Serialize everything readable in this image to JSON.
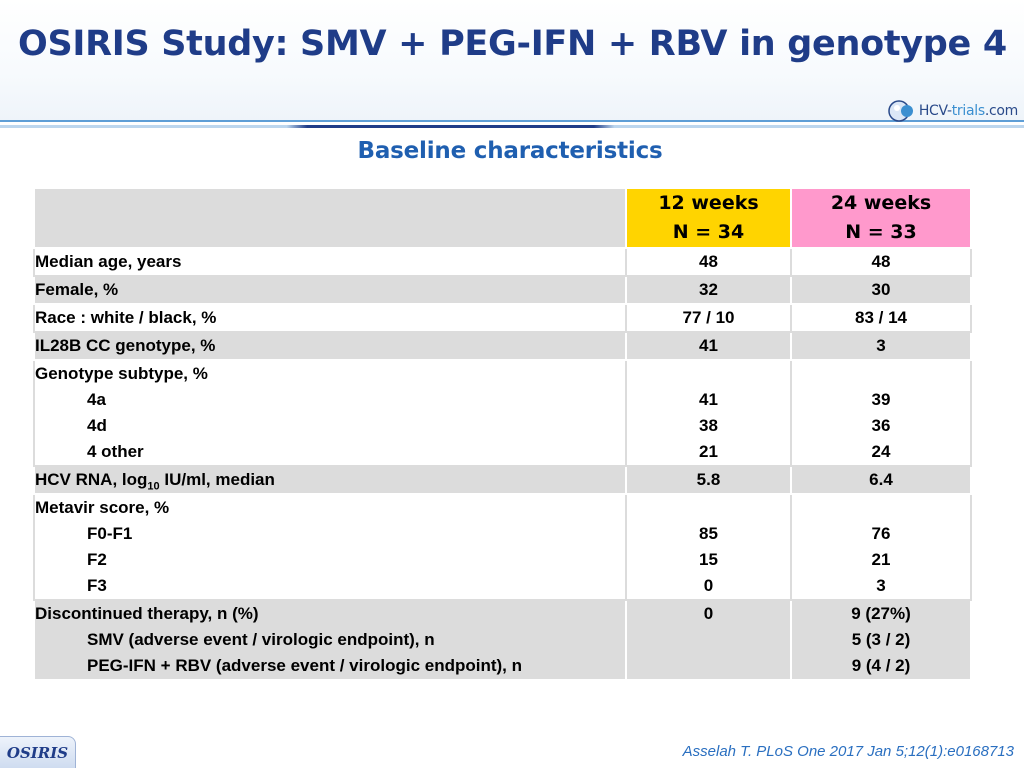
{
  "header": {
    "title": "OSIRIS Study: SMV + PEG-IFN + RBV in genotype 4",
    "logo": {
      "icon": "hcv-trials-logo-icon",
      "text_main": "HCV-",
      "text_accent": "trials",
      "text_suffix": ".com"
    }
  },
  "section_title": "Baseline characteristics",
  "table": {
    "columns": [
      {
        "line1": "12 weeks",
        "line2": "N = 34",
        "color": "#ffd400"
      },
      {
        "line1": "24 weeks",
        "line2": "N = 33",
        "color": "#ff99cc"
      }
    ],
    "rows": [
      {
        "label": "Median age, years",
        "v12": "48",
        "v24": "48"
      },
      {
        "label": "Female, %",
        "v12": "32",
        "v24": "30"
      },
      {
        "label": "Race : white / black, %",
        "v12": "77 / 10",
        "v24": "83 / 14"
      },
      {
        "label": "IL28B CC genotype, %",
        "v12": "41",
        "v24": "3"
      },
      {
        "label": "Genotype subtype, %",
        "sub": [
          {
            "label": "4a",
            "v12": "41",
            "v24": "39"
          },
          {
            "label": "4d",
            "v12": "38",
            "v24": "36"
          },
          {
            "label": "4 other",
            "v12": "21",
            "v24": "24"
          }
        ]
      },
      {
        "label_pre": "HCV RNA, log",
        "label_sub": "10",
        "label_post": " IU/ml, median",
        "v12": "5.8",
        "v24": "6.4"
      },
      {
        "label": "Metavir score, %",
        "sub": [
          {
            "label": "F0-F1",
            "v12": "85",
            "v24": "76"
          },
          {
            "label": "F2",
            "v12": "15",
            "v24": "21"
          },
          {
            "label": "F3",
            "v12": "0",
            "v24": "3"
          }
        ]
      },
      {
        "label": "Discontinued therapy, n (%)",
        "v12": "0",
        "v24": "9 (27%)",
        "sub": [
          {
            "label": "SMV (adverse event / virologic endpoint), n",
            "v24": "5 (3 / 2)"
          },
          {
            "label": "PEG-IFN + RBV (adverse event / virologic endpoint), n",
            "v24": "9 (4 / 2)"
          }
        ]
      }
    ]
  },
  "footer": {
    "tag": "OSIRIS",
    "citation": "Asselah T. PLoS One 2017 Jan 5;12(1):e0168713"
  },
  "colors": {
    "title": "#1f3c88",
    "section_title": "#1f5fb0",
    "row_shade": "#dcdcdc",
    "citation": "#2a6fc0"
  }
}
